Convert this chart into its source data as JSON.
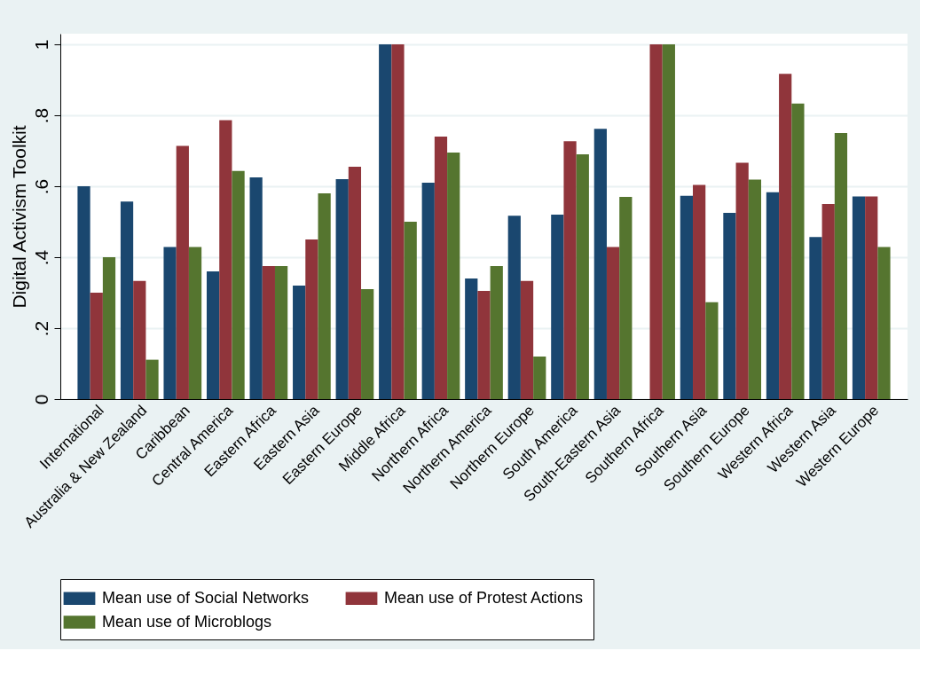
{
  "chart_data": {
    "type": "bar",
    "ylabel": "Digital Activism Toolkit",
    "categories": [
      "International",
      "Australia & New Zealand",
      "Caribbean",
      "Central America",
      "Eastern Africa",
      "Eastern Asia",
      "Eastern Europe",
      "Middle Africa",
      "Northern Africa",
      "Northern America",
      "Northern Europe",
      "South America",
      "South-Eastern Asia",
      "Southern Africa",
      "Southern Asia",
      "Southern Europe",
      "Western Africa",
      "Western Asia",
      "Western Europe"
    ],
    "series": [
      {
        "name": "Mean use of Social Networks",
        "color": "#1a476f",
        "values": [
          0.6,
          0.557,
          0.429,
          0.36,
          0.625,
          0.32,
          0.62,
          1,
          0.61,
          0.34,
          0.517,
          0.52,
          0.762,
          null,
          0.573,
          0.525,
          0.583,
          0.457,
          0.571
        ]
      },
      {
        "name": "Mean use of Protest Actions",
        "color": "#90353b",
        "values": [
          0.3,
          0.333,
          0.714,
          0.786,
          0.375,
          0.45,
          0.655,
          1,
          0.74,
          0.305,
          0.333,
          0.727,
          0.429,
          1,
          0.604,
          0.666,
          0.917,
          0.55,
          0.571
        ]
      },
      {
        "name": "Mean use of Microblogs",
        "color": "#55752f",
        "values": [
          0.4,
          0.111,
          0.429,
          0.643,
          0.375,
          0.58,
          0.31,
          0.5,
          0.695,
          0.375,
          0.12,
          0.69,
          0.57,
          1,
          0.273,
          0.619,
          0.833,
          0.75,
          0.429
        ]
      }
    ],
    "ylim": [
      0,
      1.03
    ],
    "yticks": [
      {
        "value": 0,
        "label": "0"
      },
      {
        "value": 0.2,
        "label": ".2"
      },
      {
        "value": 0.4,
        "label": ".4"
      },
      {
        "value": 0.6,
        "label": ".6"
      },
      {
        "value": 0.8,
        "label": ".8"
      },
      {
        "value": 1,
        "label": "1"
      }
    ],
    "grid": "y",
    "legend": "bottom"
  }
}
